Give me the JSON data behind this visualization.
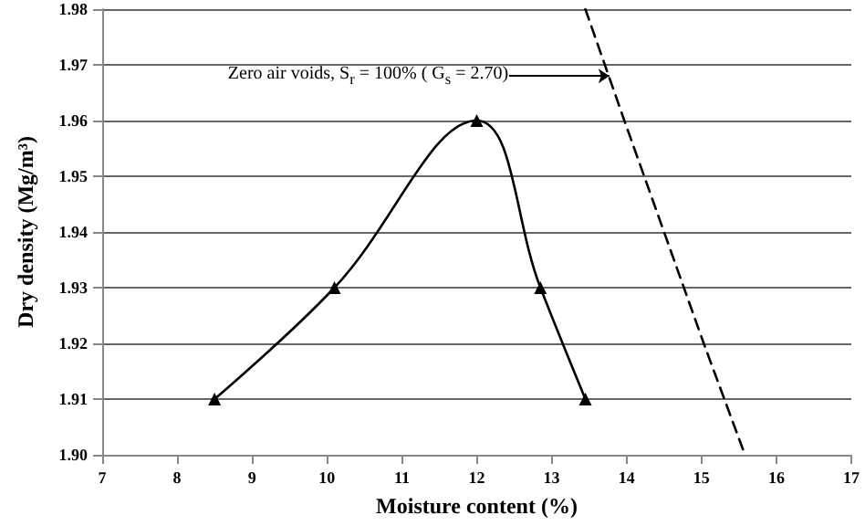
{
  "chart_data": {
    "type": "line",
    "xlabel": "Moisture content (%)",
    "ylabel": "Dry density (Mg/m³)",
    "xlim": [
      7,
      17
    ],
    "xticks": [
      7,
      8,
      9,
      10,
      11,
      12,
      13,
      14,
      15,
      16,
      17
    ],
    "ylim": [
      1.9,
      1.98
    ],
    "yticks": [
      {
        "value": 1.9,
        "label": "1.90"
      },
      {
        "value": 1.91,
        "label": "1.91"
      },
      {
        "value": 1.92,
        "label": "1.92"
      },
      {
        "value": 1.93,
        "label": "1.93"
      },
      {
        "value": 1.94,
        "label": "1.94"
      },
      {
        "value": 1.95,
        "label": "1.95"
      },
      {
        "value": 1.96,
        "label": "1.96"
      },
      {
        "value": 1.97,
        "label": "1.97"
      },
      {
        "value": 1.98,
        "label": "1.98"
      }
    ],
    "grid": "y",
    "series": [
      {
        "color": "#000000",
        "marker": "triangle",
        "line_style": "solid",
        "x": [
          8.5,
          10.1,
          12.0,
          12.85,
          13.45
        ],
        "values": [
          1.91,
          1.93,
          1.96,
          1.93,
          1.91
        ]
      },
      {
        "color": "#000000",
        "marker": "none",
        "line_style": "dashed",
        "x": [
          13.45,
          13.97,
          14.5,
          15.03,
          15.58
        ],
        "values": [
          1.98,
          1.96,
          1.94,
          1.92,
          1.9
        ]
      }
    ],
    "annotations": [
      {
        "text": "Zero air voids, S$_{r}$ = 100% ( G$_{s}$ = 2.70)",
        "x": 13.77,
        "y": 1.968
      }
    ]
  }
}
